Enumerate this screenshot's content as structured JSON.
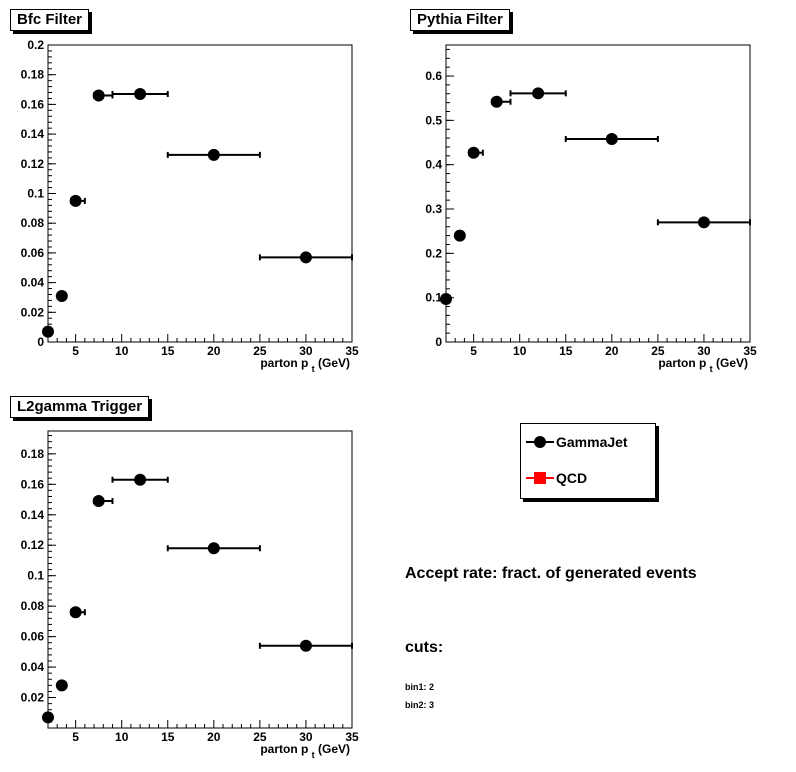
{
  "chart_data": [
    {
      "type": "scatter",
      "title": "Bfc Filter",
      "xlabel": "parton p",
      "xlabel_sub": "t",
      "xlabel_unit": "(GeV)",
      "xlim": [
        2,
        35
      ],
      "ylim": [
        0,
        0.2
      ],
      "xticks": [
        5,
        10,
        15,
        20,
        25,
        30,
        35
      ],
      "yticks": [
        0,
        0.02,
        0.04,
        0.06,
        0.08,
        0.1,
        0.12,
        0.14,
        0.16,
        0.18,
        0.2
      ],
      "ytick_labels": [
        "0",
        "0.02",
        "0.04",
        "0.06",
        "0.08",
        "0.1",
        "0.12",
        "0.14",
        "0.16",
        "0.18",
        "0.2"
      ],
      "series": [
        {
          "name": "GammaJet",
          "x": [
            2.0,
            3.5,
            5.0,
            7.5,
            12.0,
            20.0,
            30.0
          ],
          "y": [
            0.007,
            0.031,
            0.095,
            0.166,
            0.167,
            0.126,
            0.057
          ],
          "xerr_low": [
            0,
            0,
            0.5,
            0.5,
            3.0,
            5.0,
            5.0
          ],
          "xerr_high": [
            0,
            0,
            1.0,
            1.5,
            3.0,
            5.0,
            5.0
          ]
        }
      ]
    },
    {
      "type": "scatter",
      "title": "Pythia Filter",
      "xlabel": "parton p",
      "xlabel_sub": "t",
      "xlabel_unit": "(GeV)",
      "xlim": [
        2,
        35
      ],
      "ylim": [
        0,
        0.67
      ],
      "xticks": [
        5,
        10,
        15,
        20,
        25,
        30,
        35
      ],
      "yticks": [
        0,
        0.1,
        0.2,
        0.3,
        0.4,
        0.5,
        0.6
      ],
      "ytick_labels": [
        "0",
        "0.1",
        "0.2",
        "0.3",
        "0.4",
        "0.5",
        "0.6"
      ],
      "series": [
        {
          "name": "GammaJet",
          "x": [
            2.0,
            3.5,
            5.0,
            7.5,
            12.0,
            20.0,
            30.0
          ],
          "y": [
            0.097,
            0.24,
            0.427,
            0.542,
            0.561,
            0.458,
            0.27
          ],
          "xerr_low": [
            0,
            0,
            0.5,
            0.5,
            3.0,
            5.0,
            5.0
          ],
          "xerr_high": [
            0,
            0,
            1.0,
            1.5,
            3.0,
            5.0,
            5.0
          ]
        }
      ]
    },
    {
      "type": "scatter",
      "title": "L2gamma Trigger",
      "xlabel": "parton p",
      "xlabel_sub": "t",
      "xlabel_unit": "(GeV)",
      "xlim": [
        2,
        35
      ],
      "ylim": [
        0,
        0.195
      ],
      "xticks": [
        5,
        10,
        15,
        20,
        25,
        30,
        35
      ],
      "yticks": [
        0.02,
        0.04,
        0.06,
        0.08,
        0.1,
        0.12,
        0.14,
        0.16,
        0.18
      ],
      "ytick_labels": [
        "0.02",
        "0.04",
        "0.06",
        "0.08",
        "0.1",
        "0.12",
        "0.14",
        "0.16",
        "0.18"
      ],
      "series": [
        {
          "name": "GammaJet",
          "x": [
            2.0,
            3.5,
            5.0,
            7.5,
            12.0,
            20.0,
            30.0
          ],
          "y": [
            0.007,
            0.028,
            0.076,
            0.149,
            0.163,
            0.118,
            0.054
          ],
          "xerr_low": [
            0,
            0,
            0.5,
            0.5,
            3.0,
            5.0,
            5.0
          ],
          "xerr_high": [
            0,
            0,
            1.0,
            1.5,
            3.0,
            5.0,
            5.0
          ]
        }
      ]
    }
  ],
  "legend": {
    "items": [
      {
        "label": "GammaJet",
        "color": "#000000",
        "marker": "circle"
      },
      {
        "label": "QCD",
        "color": "#ff0000",
        "marker": "square"
      }
    ]
  },
  "info": {
    "accept_text": "Accept rate: fract. of generated events",
    "cuts_label": "cuts:",
    "bin1": "bin1: 2",
    "bin2": "bin2: 3"
  }
}
